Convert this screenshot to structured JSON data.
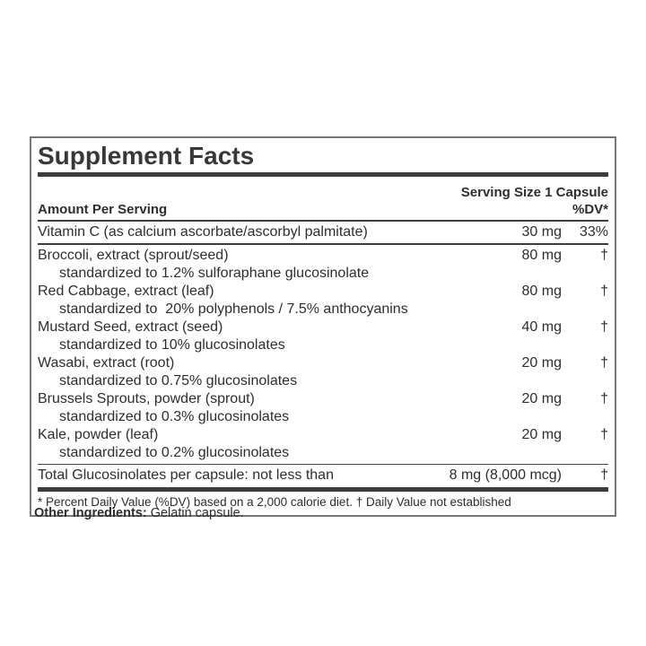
{
  "label": {
    "title": "Supplement Facts",
    "serving_size": "Serving Size 1 Capsule",
    "amount_header": "Amount Per Serving",
    "dv_header": "%DV*",
    "rows": [
      {
        "name": "Vitamin C (as calcium ascorbate/ascorbyl palmitate)",
        "amount": "30 mg",
        "dv": "33%",
        "sub": ""
      },
      {
        "name": "Broccoli, extract (sprout/seed)",
        "amount": "80 mg",
        "dv": "†",
        "sub": "standardized to 1.2% sulforaphane glucosinolate"
      },
      {
        "name": "Red Cabbage, extract (leaf)",
        "amount": "80 mg",
        "dv": "†",
        "sub": "standardized to  20% polyphenols / 7.5% anthocyanins"
      },
      {
        "name": "Mustard Seed, extract (seed)",
        "amount": "40 mg",
        "dv": "†",
        "sub": "standardized to 10% glucosinolates"
      },
      {
        "name": "Wasabi, extract (root)",
        "amount": "20 mg",
        "dv": "†",
        "sub": "standardized to 0.75% glucosinolates"
      },
      {
        "name": "Brussels Sprouts, powder (sprout)",
        "amount": "20 mg",
        "dv": "†",
        "sub": "standardized to 0.3% glucosinolates"
      },
      {
        "name": "Kale, powder (leaf)",
        "amount": "20 mg",
        "dv": "†",
        "sub": "standardized to 0.2% glucosinolates"
      },
      {
        "name": "Total Glucosinolates per capsule: not less than",
        "amount": "8 mg (8,000 mcg)",
        "dv": "†",
        "sub": ""
      }
    ],
    "footnote": "* Percent Daily Value (%DV) based on a 2,000 calorie diet. † Daily Value not established",
    "other_ingredients_label": "Other Ingredients:",
    "other_ingredients_value": " Gelatin capsule."
  },
  "colors": {
    "text": "#2e2e2e",
    "rule": "#3d3d3d",
    "border": "#777777",
    "background": "#ffffff"
  }
}
